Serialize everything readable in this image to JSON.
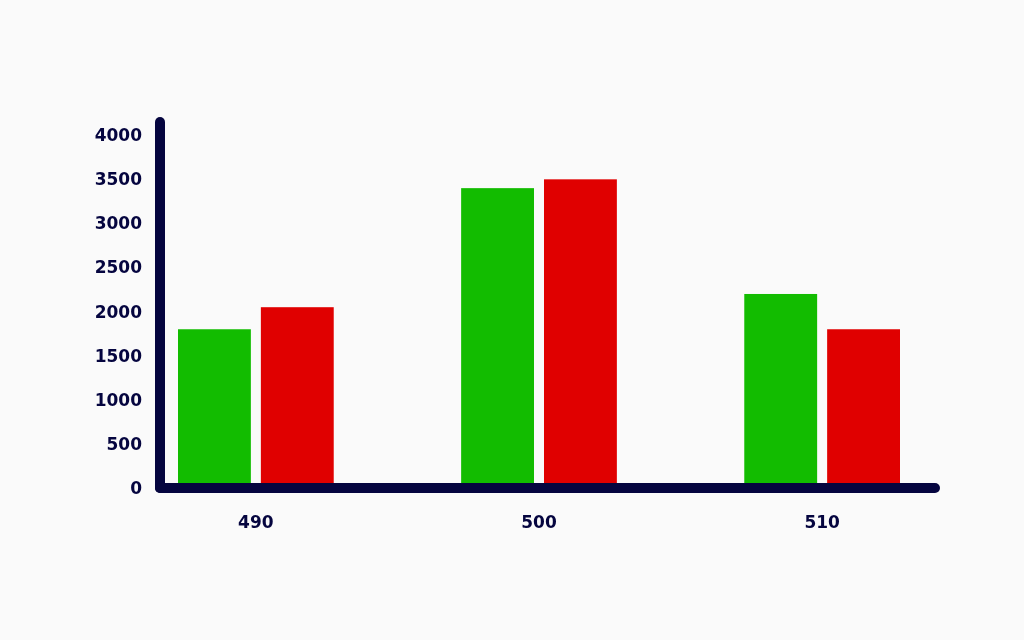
{
  "chart_data": {
    "type": "bar",
    "categories": [
      "490",
      "500",
      "510"
    ],
    "series": [
      {
        "color": "#12bc00",
        "values": [
          1800,
          3400,
          2200
        ]
      },
      {
        "color": "#e00000",
        "values": [
          2050,
          3500,
          1800
        ]
      }
    ],
    "ylim": [
      0,
      4150
    ],
    "yticks": [
      0,
      500,
      1000,
      1500,
      2000,
      2500,
      3000,
      3500,
      4000
    ],
    "grid": false
  }
}
